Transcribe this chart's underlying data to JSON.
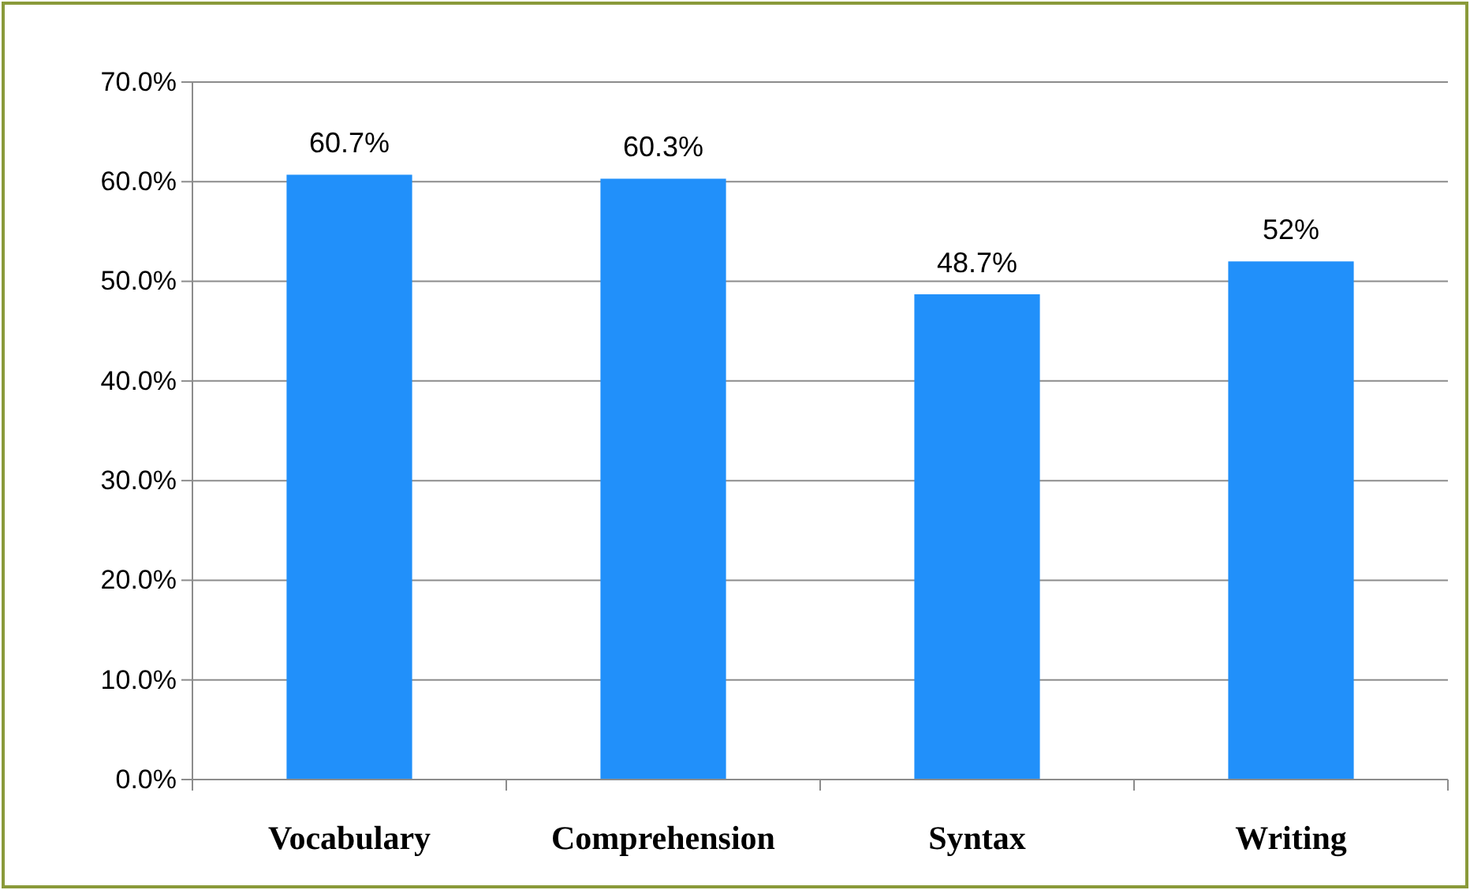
{
  "chart_data": {
    "type": "bar",
    "categories": [
      "Vocabulary",
      "Comprehension",
      "Syntax",
      "Writing"
    ],
    "values": [
      60.7,
      60.3,
      48.7,
      52
    ],
    "color": "#2190fa",
    "value_labels": [
      "60.7%",
      "60.3%",
      "48.7%",
      "52%"
    ],
    "ylim": [
      0,
      70
    ],
    "yticks": [
      {
        "value": 0,
        "label": "0.0%"
      },
      {
        "value": 10,
        "label": "10.0%"
      },
      {
        "value": 20,
        "label": "20.0%"
      },
      {
        "value": 30,
        "label": "30.0%"
      },
      {
        "value": 40,
        "label": "40.0%"
      },
      {
        "value": 50,
        "label": "50.0%"
      },
      {
        "value": 60,
        "label": "60.0%"
      },
      {
        "value": 70,
        "label": "70.0%"
      }
    ],
    "grid": "y"
  }
}
